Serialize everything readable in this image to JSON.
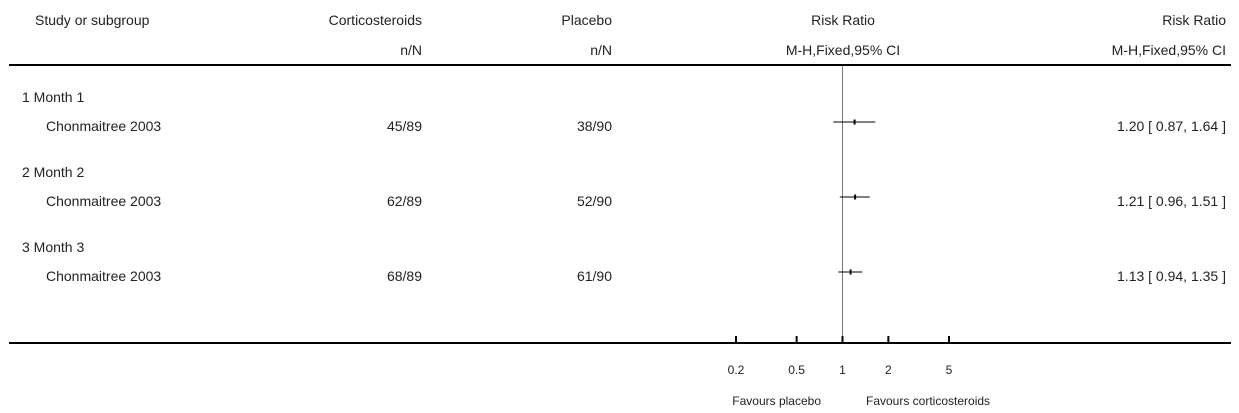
{
  "header": {
    "col_study": "Study or subgroup",
    "col_treatment": "Corticosteroids",
    "col_control": "Placebo",
    "col_plot": "Risk Ratio",
    "col_effect": "Risk Ratio",
    "sub_treatment": "n/N",
    "sub_control": "n/N",
    "sub_plot": "M-H,Fixed,95% CI",
    "sub_effect": "M-H,Fixed,95% CI"
  },
  "footer": {
    "favours_left": "Favours placebo",
    "favours_right": "Favours corticosteroids"
  },
  "chart_data": {
    "type": "forest",
    "scale": "log",
    "xlim": [
      0.2,
      5
    ],
    "reference_line": 1,
    "ticks": [
      {
        "value": 0.2,
        "label": "0.2"
      },
      {
        "value": 0.5,
        "label": "0.5"
      },
      {
        "value": 1,
        "label": "1"
      },
      {
        "value": 2,
        "label": "2"
      },
      {
        "value": 5,
        "label": "5"
      }
    ],
    "subgroups": [
      {
        "label": "1 Month 1",
        "studies": [
          {
            "study": "Chonmaitree 2003",
            "treatment": "45/89",
            "control": "38/90",
            "rr": 1.2,
            "lo": 0.87,
            "hi": 1.64,
            "text": "1.20 [ 0.87, 1.64 ]"
          }
        ]
      },
      {
        "label": "2 Month 2",
        "studies": [
          {
            "study": "Chonmaitree 2003",
            "treatment": "62/89",
            "control": "52/90",
            "rr": 1.21,
            "lo": 0.96,
            "hi": 1.51,
            "text": "1.21 [ 0.96, 1.51 ]"
          }
        ]
      },
      {
        "label": "3 Month 3",
        "studies": [
          {
            "study": "Chonmaitree 2003",
            "treatment": "68/89",
            "control": "61/90",
            "rr": 1.13,
            "lo": 0.94,
            "hi": 1.35,
            "text": "1.13 [ 0.94, 1.35 ]"
          }
        ]
      }
    ]
  }
}
